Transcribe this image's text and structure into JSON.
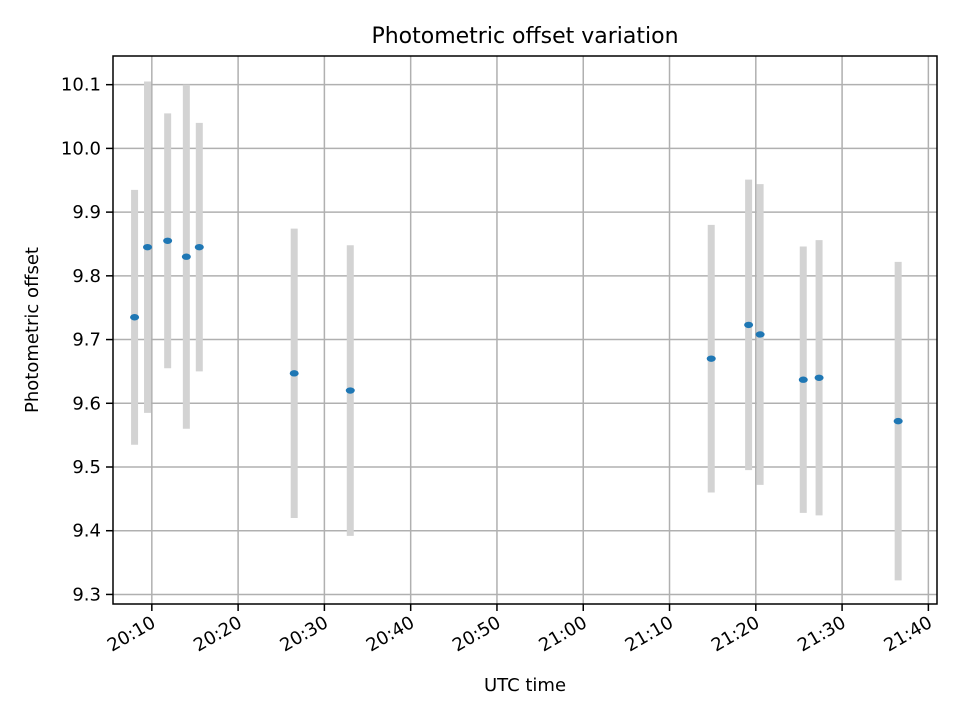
{
  "chart_data": {
    "type": "scatter",
    "title": "Photometric offset variation",
    "xlabel": "UTC time",
    "ylabel": "Photometric offset",
    "grid": true,
    "x_ticks": [
      "20:10",
      "20:20",
      "20:30",
      "20:40",
      "20:50",
      "21:00",
      "21:10",
      "21:20",
      "21:30",
      "21:40"
    ],
    "y_ticks": [
      "9.3",
      "9.4",
      "9.5",
      "9.6",
      "9.7",
      "9.8",
      "9.9",
      "10.0",
      "10.1"
    ],
    "xlim": [
      "20:05:30",
      "21:41:00"
    ],
    "ylim": [
      9.285,
      10.145
    ],
    "colors": {
      "marker": "#1f77b4",
      "errorbar": "#d3d3d3",
      "grid": "#b0b0b0"
    },
    "points": [
      {
        "time": "20:08:00",
        "y": 9.735,
        "yerr": 0.2
      },
      {
        "time": "20:09:30",
        "y": 9.845,
        "yerr": 0.26
      },
      {
        "time": "20:11:50",
        "y": 9.855,
        "yerr": 0.2
      },
      {
        "time": "20:14:00",
        "y": 9.83,
        "yerr": 0.27
      },
      {
        "time": "20:15:30",
        "y": 9.845,
        "yerr": 0.195
      },
      {
        "time": "20:26:30",
        "y": 9.647,
        "yerr": 0.227
      },
      {
        "time": "20:33:00",
        "y": 9.62,
        "yerr": 0.228
      },
      {
        "time": "21:14:50",
        "y": 9.67,
        "yerr": 0.21
      },
      {
        "time": "21:19:10",
        "y": 9.723,
        "yerr": 0.228
      },
      {
        "time": "21:20:30",
        "y": 9.708,
        "yerr": 0.236
      },
      {
        "time": "21:25:30",
        "y": 9.637,
        "yerr": 0.209
      },
      {
        "time": "21:27:20",
        "y": 9.64,
        "yerr": 0.216
      },
      {
        "time": "21:36:30",
        "y": 9.572,
        "yerr": 0.25
      }
    ]
  }
}
